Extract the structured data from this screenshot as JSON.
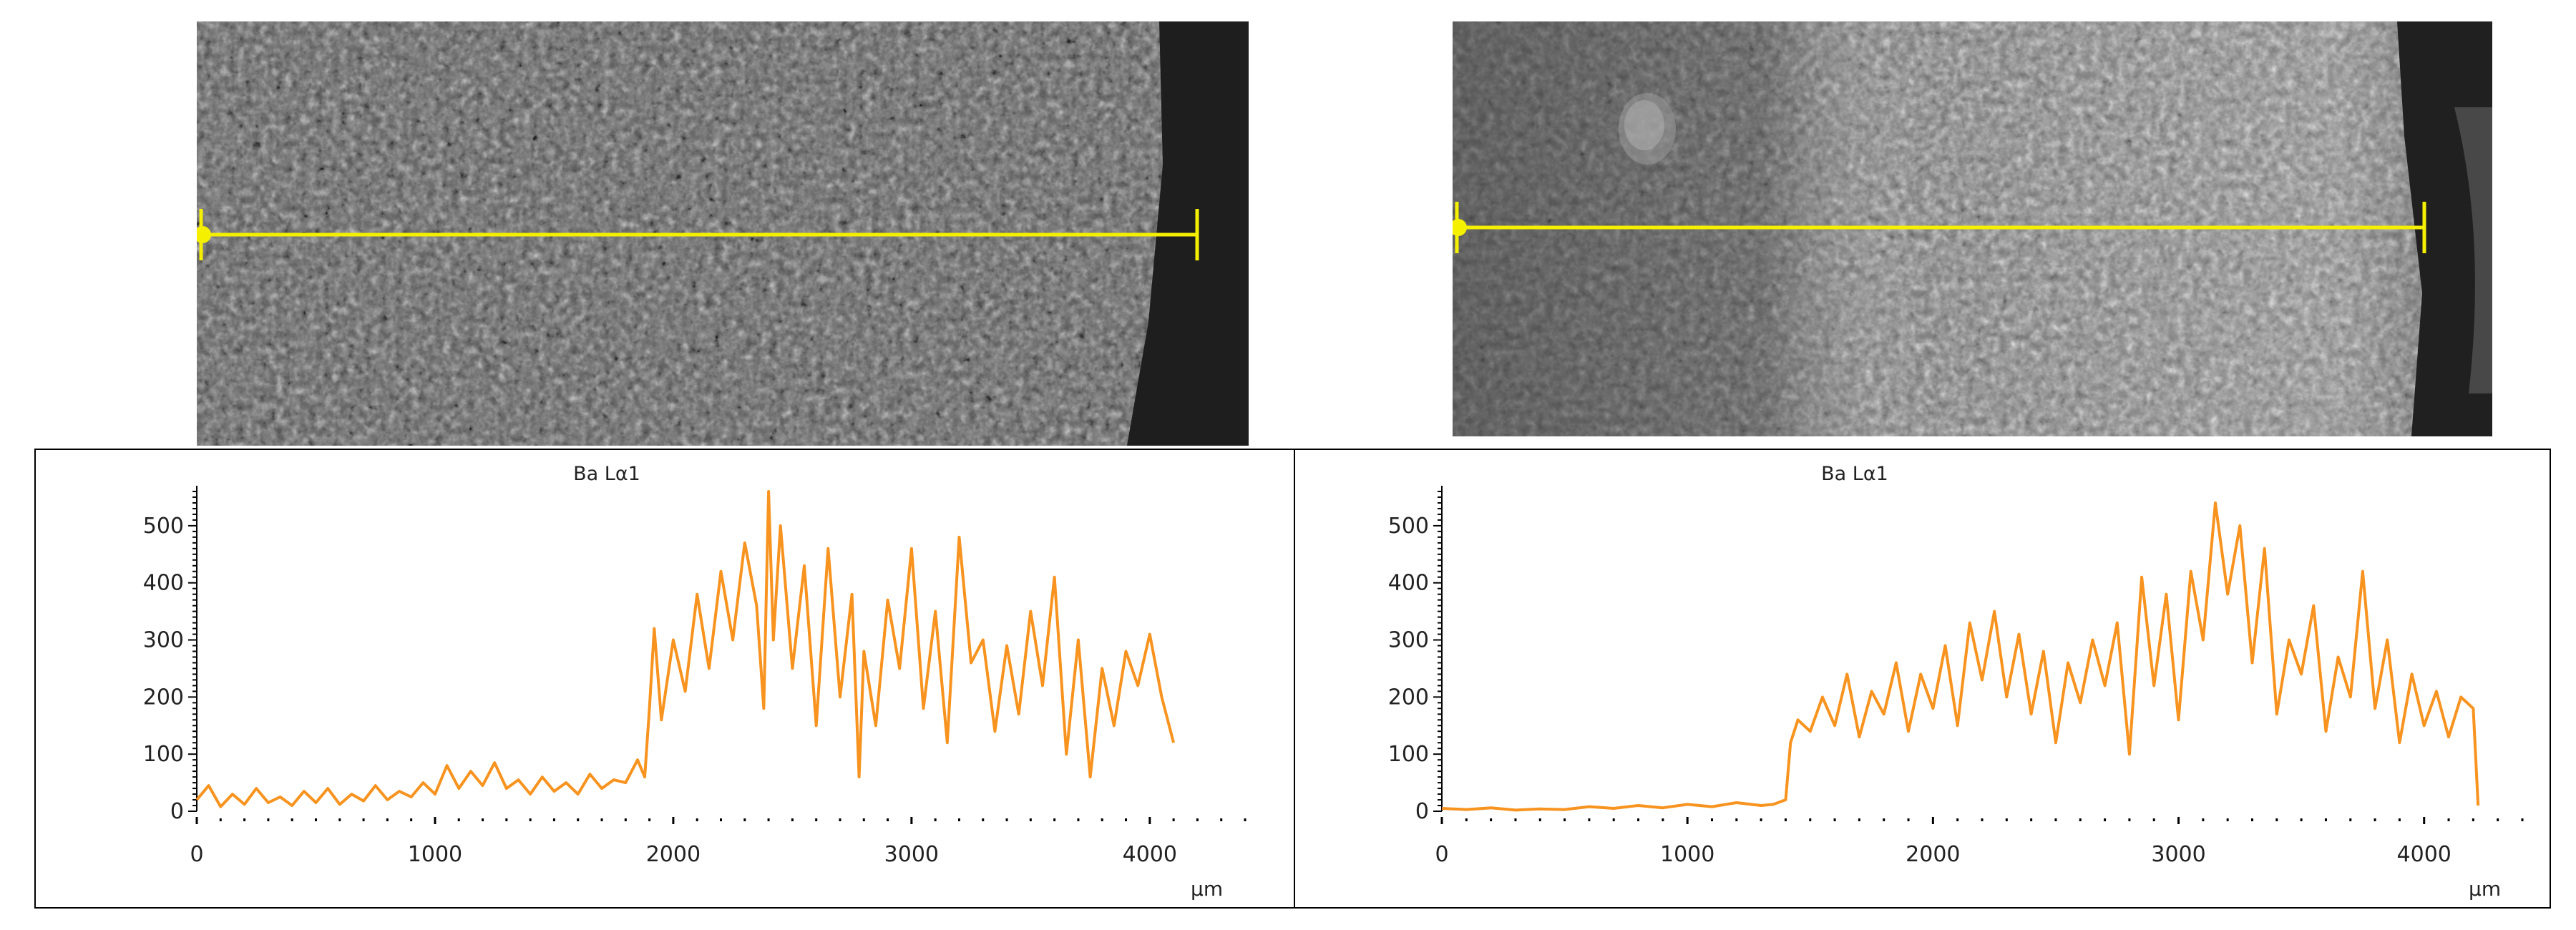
{
  "colors": {
    "trace": "#f7931e",
    "scan_line": "#f5ef00",
    "axis": "#000000",
    "background": "#ffffff"
  },
  "images": [
    {
      "name": "left-sem-image",
      "scan_line": "yellow line scan"
    },
    {
      "name": "right-sem-image",
      "scan_line": "yellow line scan"
    }
  ],
  "chart_data": [
    {
      "type": "line",
      "title": "Ba Lα1",
      "xlabel": "µm",
      "ylabel": "",
      "xlim": [
        0,
        4400
      ],
      "ylim": [
        0,
        560
      ],
      "xticks": [
        0,
        1000,
        2000,
        3000,
        4000
      ],
      "yticks": [
        0,
        100,
        200,
        300,
        400,
        500
      ],
      "grid": false,
      "series": [
        {
          "x": [
            0,
            50,
            100,
            150,
            200,
            250,
            300,
            350,
            400,
            450,
            500,
            550,
            600,
            650,
            700,
            750,
            800,
            850,
            900,
            950,
            1000,
            1050,
            1100,
            1150,
            1200,
            1250,
            1300,
            1350,
            1400,
            1450,
            1500,
            1550,
            1600,
            1650,
            1700,
            1750,
            1800,
            1850,
            1880,
            1900,
            1920,
            1950,
            2000,
            2050,
            2100,
            2150,
            2200,
            2250,
            2300,
            2350,
            2380,
            2400,
            2420,
            2450,
            2500,
            2550,
            2600,
            2650,
            2700,
            2750,
            2780,
            2800,
            2850,
            2900,
            2950,
            3000,
            3050,
            3100,
            3150,
            3200,
            3250,
            3300,
            3350,
            3400,
            3450,
            3500,
            3550,
            3600,
            3650,
            3700,
            3750,
            3800,
            3850,
            3900,
            3950,
            4000,
            4050,
            4100
          ],
          "values": [
            20,
            45,
            8,
            30,
            12,
            40,
            15,
            25,
            10,
            35,
            15,
            40,
            12,
            30,
            18,
            45,
            20,
            35,
            25,
            50,
            30,
            80,
            40,
            70,
            45,
            85,
            40,
            55,
            30,
            60,
            35,
            50,
            30,
            65,
            40,
            55,
            50,
            90,
            60,
            180,
            320,
            160,
            300,
            210,
            380,
            250,
            420,
            300,
            470,
            360,
            180,
            560,
            300,
            500,
            250,
            430,
            150,
            460,
            200,
            380,
            60,
            280,
            150,
            370,
            250,
            460,
            180,
            350,
            120,
            480,
            260,
            300,
            140,
            290,
            170,
            350,
            220,
            410,
            100,
            300,
            60,
            250,
            150,
            280,
            220,
            310,
            200,
            120
          ]
        }
      ]
    },
    {
      "type": "line",
      "title": "Ba Lα1",
      "xlabel": "µm",
      "ylabel": "",
      "xlim": [
        0,
        4400
      ],
      "ylim": [
        0,
        560
      ],
      "xticks": [
        0,
        1000,
        2000,
        3000,
        4000
      ],
      "yticks": [
        0,
        100,
        200,
        300,
        400,
        500
      ],
      "grid": false,
      "series": [
        {
          "x": [
            0,
            100,
            200,
            300,
            400,
            500,
            600,
            700,
            800,
            900,
            1000,
            1100,
            1200,
            1300,
            1350,
            1400,
            1420,
            1450,
            1500,
            1550,
            1600,
            1650,
            1700,
            1750,
            1800,
            1850,
            1900,
            1950,
            2000,
            2050,
            2100,
            2150,
            2200,
            2250,
            2300,
            2350,
            2400,
            2450,
            2500,
            2550,
            2600,
            2650,
            2700,
            2750,
            2800,
            2850,
            2900,
            2950,
            3000,
            3050,
            3100,
            3150,
            3200,
            3250,
            3300,
            3350,
            3400,
            3450,
            3500,
            3550,
            3600,
            3650,
            3700,
            3750,
            3800,
            3850,
            3900,
            3950,
            4000,
            4050,
            4100,
            4150,
            4200,
            4220
          ],
          "values": [
            5,
            3,
            6,
            2,
            4,
            3,
            8,
            5,
            10,
            6,
            12,
            8,
            15,
            10,
            12,
            20,
            120,
            160,
            140,
            200,
            150,
            240,
            130,
            210,
            170,
            260,
            140,
            240,
            180,
            290,
            150,
            330,
            230,
            350,
            200,
            310,
            170,
            280,
            120,
            260,
            190,
            300,
            220,
            330,
            100,
            410,
            220,
            380,
            160,
            420,
            300,
            540,
            380,
            500,
            260,
            460,
            170,
            300,
            240,
            360,
            140,
            270,
            200,
            420,
            180,
            300,
            120,
            240,
            150,
            210,
            130,
            200,
            180,
            10
          ]
        }
      ]
    }
  ]
}
